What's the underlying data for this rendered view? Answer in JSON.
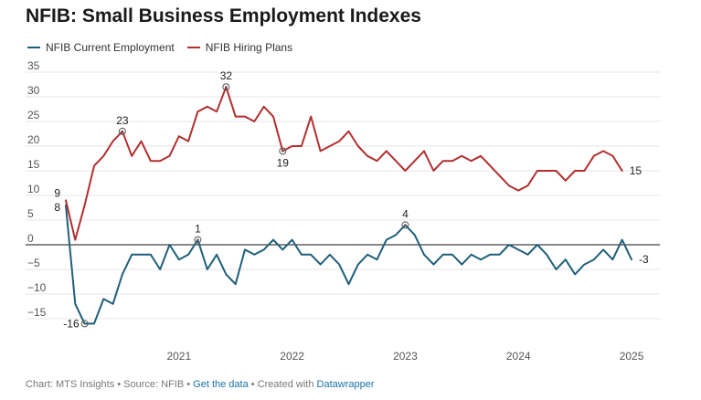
{
  "title": "NFIB: Small Business Employment Indexes",
  "footer": {
    "chart_credit": "Chart: MTS Insights",
    "source": "Source: NFIB",
    "get_data": "Get the data",
    "created_with": "Created with",
    "datawrapper": "Datawrapper",
    "separator": " • "
  },
  "colors": {
    "current": "#1f5f7a",
    "hiring": "#b22f2f",
    "zero_line": "#111111",
    "grid": "#e6e6e6"
  },
  "chart_data": {
    "type": "line",
    "title": "NFIB: Small Business Employment Indexes",
    "xlabel": "",
    "ylabel": "",
    "ylim": [
      -18,
      36
    ],
    "yticks": [
      35,
      30,
      25,
      20,
      15,
      10,
      5,
      0,
      -5,
      -10,
      -15
    ],
    "ytick_labels": [
      "35",
      "30",
      "25",
      "20",
      "15",
      "10",
      "5",
      "0",
      "−5",
      "−10",
      "−15"
    ],
    "xticks": [
      {
        "label": "2021",
        "x": 2021.0
      },
      {
        "label": "2022",
        "x": 2022.0
      },
      {
        "label": "2023",
        "x": 2023.0
      },
      {
        "label": "2024",
        "x": 2024.0
      },
      {
        "label": "2025",
        "x": 2025.0
      }
    ],
    "grid": true,
    "legend": "top-left",
    "x_start": 2020.0,
    "x_step": 0.08333,
    "series": [
      {
        "name": "NFIB Current Employment",
        "color": "#1f5f7a",
        "values": [
          8,
          -12,
          -16,
          -16,
          -11,
          -12,
          -6,
          -2,
          -2,
          -2,
          -5,
          0,
          -3,
          -2,
          1,
          -5,
          -2,
          -6,
          -8,
          -1,
          -2,
          -1,
          1,
          -1,
          1,
          -2,
          -2,
          -4,
          -2,
          -4,
          -8,
          -4,
          -2,
          -3,
          1,
          2,
          4,
          2,
          -2,
          -4,
          -2,
          -2,
          -4,
          -2,
          -3,
          -2,
          -2,
          0,
          -1,
          -2,
          0,
          -2,
          -5,
          -3,
          -6,
          -4,
          -3,
          -1,
          -3,
          1,
          -3
        ]
      },
      {
        "name": "NFIB Hiring Plans",
        "color": "#b22f2f",
        "values": [
          9,
          1,
          8,
          16,
          18,
          21,
          23,
          18,
          21,
          17,
          17,
          18,
          22,
          21,
          27,
          28,
          27,
          32,
          26,
          26,
          25,
          28,
          26,
          19,
          20,
          20,
          26,
          19,
          20,
          21,
          23,
          20,
          18,
          17,
          19,
          17,
          15,
          17,
          19,
          15,
          17,
          17,
          18,
          17,
          18,
          16,
          14,
          12,
          11,
          12,
          15,
          15,
          15,
          13,
          15,
          15,
          18,
          19,
          18,
          15
        ]
      }
    ],
    "annotations": [
      {
        "series": 0,
        "index": 0,
        "label": "8",
        "pos": "left-below",
        "circle": false
      },
      {
        "series": 0,
        "index": 2,
        "label": "-16",
        "pos": "left",
        "circle": true
      },
      {
        "series": 0,
        "index": 14,
        "label": "1",
        "pos": "above",
        "circle": true
      },
      {
        "series": 0,
        "index": 36,
        "label": "4",
        "pos": "above",
        "circle": true
      },
      {
        "series": 0,
        "index": 60,
        "label": "-3",
        "pos": "right",
        "circle": false
      },
      {
        "series": 1,
        "index": 0,
        "label": "9",
        "pos": "left-above",
        "circle": false
      },
      {
        "series": 1,
        "index": 6,
        "label": "23",
        "pos": "above",
        "circle": true
      },
      {
        "series": 1,
        "index": 17,
        "label": "32",
        "pos": "above",
        "circle": true
      },
      {
        "series": 1,
        "index": 23,
        "label": "19",
        "pos": "below",
        "circle": true
      },
      {
        "series": 1,
        "index": 59,
        "label": "15",
        "pos": "right",
        "circle": false
      }
    ]
  }
}
